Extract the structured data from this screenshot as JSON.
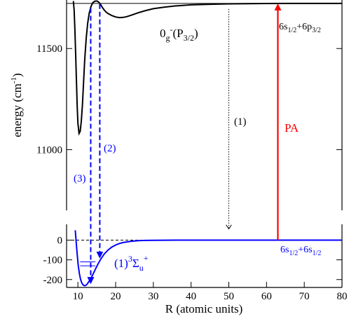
{
  "chart_data": [
    {
      "type": "line",
      "panel": "upper",
      "ylabel": "energy (cm",
      "ylabel_exp": "-1",
      "ylabel_close": ")",
      "xlim": [
        7,
        80
      ],
      "ylim": [
        10700,
        11740
      ],
      "yticks": [
        11000,
        11500
      ],
      "asymptote": 11723,
      "series": [
        {
          "name": "0g-(P3/2)",
          "color": "#000000",
          "x": [
            8.8,
            9.0,
            9.2,
            9.4,
            9.6,
            9.8,
            10.0,
            10.3,
            10.6,
            10.9,
            11.2,
            11.5,
            11.8,
            12.2,
            12.6,
            13.0,
            13.5,
            14.0,
            14.5,
            15.0,
            15.5,
            16.0,
            16.5,
            17.0,
            17.5,
            18.0,
            19.0,
            20.0,
            21.0,
            22.0,
            23.0,
            24.0,
            26.0,
            28.0,
            30.0,
            33.0,
            36.0,
            40.0,
            45.0,
            50.0,
            55.0,
            60.0,
            65.0,
            70.0,
            75.0,
            80.0
          ],
          "y": [
            11735,
            11690,
            11600,
            11480,
            11350,
            11220,
            11130,
            11080,
            11090,
            11140,
            11220,
            11330,
            11440,
            11550,
            11625,
            11675,
            11710,
            11728,
            11734,
            11735,
            11730,
            11718,
            11703,
            11690,
            11680,
            11673,
            11663,
            11656,
            11653,
            11654,
            11658,
            11664,
            11677,
            11688,
            11697,
            11705,
            11711,
            11716,
            11719,
            11721,
            11722,
            11722.5,
            11723,
            11723,
            11723,
            11723
          ]
        }
      ],
      "labels": {
        "state_main": "0",
        "state_sub1": "g",
        "state_sup": "-",
        "state_open": "(P",
        "state_sub2": "3/2",
        "state_close": ")",
        "asym_a": "6s",
        "asym_a_sub": "1/2",
        "asym_plus": "+6p",
        "asym_b_sub": "3/2",
        "step1": "(1)",
        "step2": "(2)",
        "step3": "(3)",
        "pa": "PA"
      }
    },
    {
      "type": "line",
      "panel": "lower",
      "xlabel": "R  (atomic units)",
      "xlim": [
        7,
        80
      ],
      "ylim": [
        -240,
        80
      ],
      "xticks": [
        10,
        20,
        30,
        40,
        50,
        60,
        70,
        80
      ],
      "yticks": [
        -200,
        -100,
        0
      ],
      "series": [
        {
          "name": "(1)3Σu+",
          "color": "#0000ff",
          "x": [
            9.3,
            9.5,
            9.8,
            10.1,
            10.4,
            10.7,
            11.0,
            11.3,
            11.6,
            11.9,
            12.2,
            12.5,
            13.0,
            13.5,
            14.0,
            14.5,
            15.0,
            15.5,
            16.0,
            17.0,
            18.0,
            19.0,
            20.0,
            21.0,
            22.0,
            24.0,
            26.0,
            28.0,
            30.0,
            33.0,
            36.0,
            40.0,
            45.0,
            50.0,
            60.0,
            70.0,
            80.0
          ],
          "y": [
            50,
            0,
            -70,
            -130,
            -170,
            -198,
            -215,
            -225,
            -230,
            -231,
            -228,
            -222,
            -208,
            -192,
            -173,
            -153,
            -133,
            -115,
            -98,
            -70,
            -50,
            -35,
            -25,
            -17,
            -12,
            -6,
            -3,
            -1.5,
            -0.8,
            -0.3,
            -0.1,
            0,
            0,
            0,
            0,
            0,
            0
          ]
        }
      ],
      "vibrational_levels_cm1": [
        -110,
        -130
      ],
      "labels": {
        "state_pre": "(1)",
        "state_sup1": "3",
        "state_main": "Σ",
        "state_sub": "u",
        "state_sup2": "+",
        "asym_a": "6s",
        "asym_a_sub": "1/2",
        "asym_plus": "+6s",
        "asym_b_sub": "1/2"
      }
    }
  ],
  "transitions": [
    {
      "label": "(1)",
      "style": "dotted",
      "color": "#000000",
      "x": 50
    },
    {
      "label": "(2)",
      "style": "dashed",
      "color": "#0000ff",
      "x": 15.8
    },
    {
      "label": "(3)",
      "style": "dashed",
      "color": "#0000ff",
      "x": 13.4
    },
    {
      "label": "PA",
      "style": "solid",
      "color": "#ff0000",
      "x": 63
    }
  ]
}
